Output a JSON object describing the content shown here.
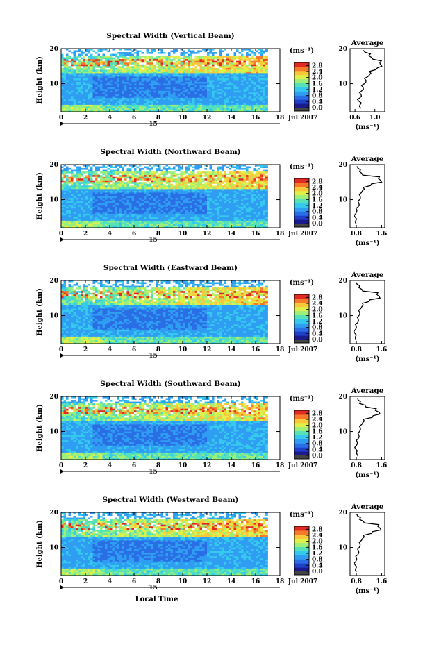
{
  "chart_data": [
    {
      "type": "heatmap",
      "title": "Spectral Width (Vertical Beam)",
      "ylabel": "Height (km)",
      "x_range": [
        0,
        18
      ],
      "x_ticks": [
        "0",
        "2",
        "4",
        "6",
        "8",
        "10",
        "12",
        "14",
        "16",
        "18"
      ],
      "y_range": [
        2,
        20
      ],
      "y_ticks": [
        "10",
        "20"
      ],
      "data_extent_x": [
        0,
        17
      ],
      "colorbar": {
        "unit": "(ms⁻¹)",
        "ticks": [
          "0.0",
          "0.4",
          "0.8",
          "1.2",
          "1.6",
          "2.0",
          "2.4",
          "2.8"
        ],
        "range": [
          0,
          3.0
        ]
      },
      "profile": {
        "title": "Average",
        "xlabel": "(ms⁻¹)",
        "x_ticks": [
          "0.6",
          "1.0"
        ],
        "x_range": [
          0.5,
          1.2
        ],
        "heights": [
          3,
          4,
          5,
          6,
          7,
          8,
          9,
          10,
          11,
          12,
          13,
          14,
          15,
          16,
          17,
          18,
          19
        ],
        "values": [
          0.72,
          0.7,
          0.68,
          0.7,
          0.72,
          0.74,
          0.76,
          0.79,
          0.82,
          0.86,
          0.92,
          1.02,
          1.14,
          1.1,
          0.96,
          0.88,
          0.8
        ]
      },
      "date_label": "Jul 2007",
      "day_label": "15"
    },
    {
      "type": "heatmap",
      "title": "Spectral Width (Northward Beam)",
      "ylabel": "Height (km)",
      "x_range": [
        0,
        18
      ],
      "x_ticks": [
        "0",
        "2",
        "4",
        "6",
        "8",
        "10",
        "12",
        "14",
        "16",
        "18"
      ],
      "y_range": [
        2,
        20
      ],
      "y_ticks": [
        "10",
        "20"
      ],
      "data_extent_x": [
        0,
        17
      ],
      "colorbar": {
        "unit": "(ms⁻¹)",
        "ticks": [
          "0.0",
          "0.4",
          "0.8",
          "1.2",
          "1.6",
          "2.0",
          "2.4",
          "2.8"
        ],
        "range": [
          0,
          3.0
        ]
      },
      "profile": {
        "title": "Average",
        "xlabel": "(ms⁻¹)",
        "x_ticks": [
          "0.8",
          "1.6"
        ],
        "x_range": [
          0.6,
          1.7
        ],
        "heights": [
          3,
          4,
          5,
          6,
          7,
          8,
          9,
          10,
          11,
          12,
          13,
          14,
          15,
          16,
          17,
          18,
          19
        ],
        "values": [
          0.8,
          0.78,
          0.76,
          0.78,
          0.82,
          0.86,
          0.88,
          0.9,
          0.92,
          0.96,
          1.05,
          1.25,
          1.6,
          1.5,
          1.0,
          0.9,
          0.85
        ]
      },
      "date_label": "Jul 2007",
      "day_label": "15"
    },
    {
      "type": "heatmap",
      "title": "Spectral Width (Eastward Beam)",
      "ylabel": "Height (km)",
      "x_range": [
        0,
        18
      ],
      "x_ticks": [
        "0",
        "2",
        "4",
        "6",
        "8",
        "10",
        "12",
        "14",
        "16",
        "18"
      ],
      "y_range": [
        2,
        20
      ],
      "y_ticks": [
        "10",
        "20"
      ],
      "data_extent_x": [
        0,
        17
      ],
      "colorbar": {
        "unit": "(ms⁻¹)",
        "ticks": [
          "0.0",
          "0.4",
          "0.8",
          "1.2",
          "1.6",
          "2.0",
          "2.4",
          "2.8"
        ],
        "range": [
          0,
          3.0
        ]
      },
      "profile": {
        "title": "Average",
        "xlabel": "(ms⁻¹)",
        "x_ticks": [
          "0.8",
          "1.6"
        ],
        "x_range": [
          0.6,
          1.7
        ],
        "heights": [
          3,
          4,
          5,
          6,
          7,
          8,
          9,
          10,
          11,
          12,
          13,
          14,
          15,
          16,
          17,
          18,
          19
        ],
        "values": [
          0.8,
          0.77,
          0.75,
          0.77,
          0.8,
          0.84,
          0.86,
          0.88,
          0.9,
          0.94,
          1.02,
          1.2,
          1.55,
          1.45,
          1.0,
          0.88,
          0.82
        ]
      },
      "date_label": "Jul 2007",
      "day_label": "15"
    },
    {
      "type": "heatmap",
      "title": "Spectral Width (Southward Beam)",
      "ylabel": "Height (km)",
      "x_range": [
        0,
        18
      ],
      "x_ticks": [
        "0",
        "2",
        "4",
        "6",
        "8",
        "10",
        "12",
        "14",
        "16",
        "18"
      ],
      "y_range": [
        2,
        20
      ],
      "y_ticks": [
        "10",
        "20"
      ],
      "data_extent_x": [
        0,
        17
      ],
      "colorbar": {
        "unit": "(ms⁻¹)",
        "ticks": [
          "0.0",
          "0.4",
          "0.8",
          "1.2",
          "1.6",
          "2.0",
          "2.4",
          "2.8"
        ],
        "range": [
          0,
          3.0
        ]
      },
      "profile": {
        "title": "Average",
        "xlabel": "(ms⁻¹)",
        "x_ticks": [
          "0.8",
          "1.6"
        ],
        "x_range": [
          0.6,
          1.7
        ],
        "heights": [
          3,
          4,
          5,
          6,
          7,
          8,
          9,
          10,
          11,
          12,
          13,
          14,
          15,
          16,
          17,
          18,
          19
        ],
        "values": [
          0.85,
          0.8,
          0.78,
          0.8,
          0.83,
          0.86,
          0.88,
          0.9,
          0.93,
          0.97,
          1.05,
          1.3,
          1.55,
          1.4,
          1.1,
          0.9,
          0.86
        ]
      },
      "date_label": "Jul 2007",
      "day_label": "15"
    },
    {
      "type": "heatmap",
      "title": "Spectral Width (Westward Beam)",
      "ylabel": "Height (km)",
      "x_range": [
        0,
        18
      ],
      "x_ticks": [
        "0",
        "2",
        "4",
        "6",
        "8",
        "10",
        "12",
        "14",
        "16",
        "18"
      ],
      "y_range": [
        2,
        20
      ],
      "y_ticks": [
        "10",
        "20"
      ],
      "data_extent_x": [
        0,
        17
      ],
      "xlabel": "Local Time",
      "colorbar": {
        "unit": "(ms⁻¹)",
        "ticks": [
          "0.0",
          "0.4",
          "0.8",
          "1.2",
          "1.6",
          "2.0",
          "2.4",
          "2.8"
        ],
        "range": [
          0,
          3.0
        ]
      },
      "profile": {
        "title": "Average",
        "xlabel": "(ms⁻¹)",
        "x_ticks": [
          "0.8",
          "1.6"
        ],
        "x_range": [
          0.6,
          1.7
        ],
        "heights": [
          3,
          4,
          5,
          6,
          7,
          8,
          9,
          10,
          11,
          12,
          13,
          14,
          15,
          16,
          17,
          18,
          19
        ],
        "values": [
          0.8,
          0.78,
          0.76,
          0.78,
          0.81,
          0.85,
          0.87,
          0.89,
          0.92,
          0.96,
          1.05,
          1.28,
          1.58,
          1.48,
          1.05,
          0.9,
          0.84
        ]
      },
      "date_label": "Jul 2007",
      "day_label": "15"
    }
  ],
  "colors": {
    "colormap": [
      "#1a1a8c",
      "#1f3fc8",
      "#2a6ee6",
      "#2f9df2",
      "#36c9ee",
      "#55e2b8",
      "#9cf07a",
      "#dff04a",
      "#fbc83a",
      "#f77a2c",
      "#e02a22"
    ],
    "colorbar_bottom": "#444444",
    "profile_line": "#000000"
  }
}
